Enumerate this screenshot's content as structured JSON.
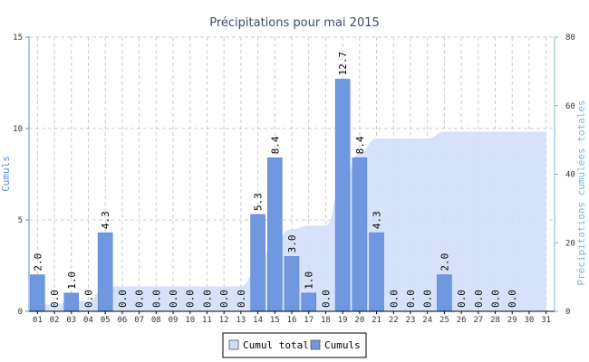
{
  "chart_data": {
    "type": "bar",
    "title": "Précipitations pour mai 2015",
    "categories": [
      "01",
      "02",
      "03",
      "04",
      "05",
      "06",
      "07",
      "08",
      "09",
      "10",
      "11",
      "12",
      "13",
      "14",
      "15",
      "16",
      "17",
      "18",
      "19",
      "20",
      "21",
      "22",
      "23",
      "24",
      "25",
      "26",
      "27",
      "28",
      "29",
      "30",
      "31"
    ],
    "series": [
      {
        "name": "Cumuls",
        "type": "bar",
        "axis": "left",
        "color": "#6f98e0",
        "values": [
          2.0,
          0.0,
          1.0,
          0.0,
          4.3,
          0.0,
          0.0,
          0.0,
          0.0,
          0.0,
          0.0,
          0.0,
          0.0,
          5.3,
          8.4,
          3.0,
          1.0,
          0.0,
          12.7,
          8.4,
          4.3,
          0.0,
          0.0,
          0.0,
          2.0,
          0.0,
          0.0,
          0.0,
          0.0,
          null,
          null
        ],
        "labels": [
          "2.0",
          "0.0",
          "1.0",
          "0.0",
          "4.3",
          "0.0",
          "0.0",
          "0.0",
          "0.0",
          "0.0",
          "0.0",
          "0.0",
          "0.0",
          "5.3",
          "8.4",
          "3.0",
          "1.0",
          "0.0",
          "12.7",
          "8.4",
          "4.3",
          "0.0",
          "0.0",
          "0.0",
          "2.0",
          "0.0",
          "0.0",
          "0.0",
          "0.0",
          "",
          ""
        ]
      },
      {
        "name": "Cumul total",
        "type": "area",
        "axis": "right",
        "color": "#d2dff8",
        "values": [
          2.0,
          2.0,
          3.0,
          3.0,
          7.3,
          7.3,
          7.3,
          7.3,
          7.3,
          7.3,
          7.3,
          7.3,
          7.3,
          12.6,
          21.0,
          24.0,
          25.0,
          25.0,
          37.7,
          46.1,
          50.4,
          50.4,
          50.4,
          50.4,
          52.4,
          52.4,
          52.4,
          52.4,
          52.4,
          52.4,
          52.4
        ]
      }
    ],
    "ylabel": "Cumuls",
    "ylim": [
      0,
      15
    ],
    "yticks": [
      "0",
      "5",
      "10",
      "15"
    ],
    "y2label": "Précipitations cumulées totales",
    "y2lim": [
      0,
      80
    ],
    "y2ticks": [
      "0",
      "20",
      "40",
      "60",
      "80"
    ],
    "grid": true,
    "legend_position": "bottom-center",
    "legend": [
      {
        "label": "Cumul total",
        "color": "#d2dff8"
      },
      {
        "label": "Cumuls",
        "color": "#6f98e0"
      }
    ],
    "colors": {
      "title": "#3a4a6b",
      "left_axis": "#5b8fd6",
      "right_axis": "#7fb4d6",
      "grid": "#cccccc"
    }
  }
}
